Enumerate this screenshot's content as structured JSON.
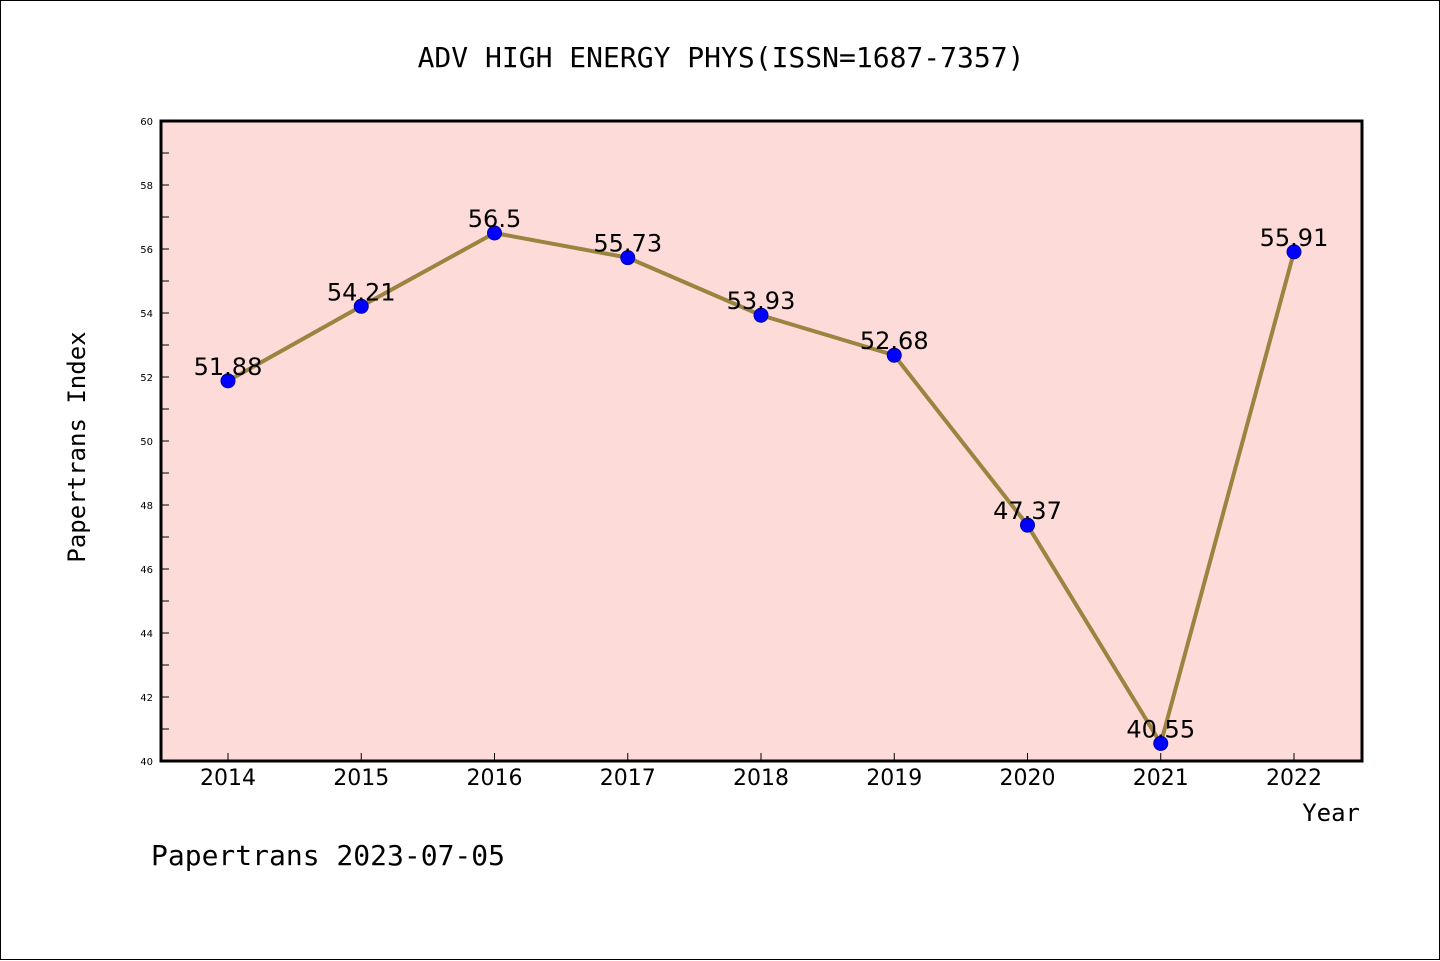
{
  "chart_data": {
    "type": "line",
    "title": "ADV HIGH ENERGY PHYS(ISSN=1687-7357)",
    "xlabel": "Year",
    "ylabel": "Papertrans Index",
    "categories": [
      "2014",
      "2015",
      "2016",
      "2017",
      "2018",
      "2019",
      "2020",
      "2021",
      "2022"
    ],
    "series": [
      {
        "values": [
          51.88,
          54.21,
          56.5,
          55.73,
          53.93,
          52.68,
          47.37,
          40.55,
          55.91
        ],
        "data_labels": [
          "51.88",
          "54.21",
          "56.5",
          "55.73",
          "53.93",
          "52.68",
          "47.37",
          "40.55",
          "55.91"
        ]
      }
    ],
    "ylim": [
      40,
      60
    ],
    "y_ticks": [
      40,
      42,
      44,
      46,
      48,
      50,
      52,
      54,
      56,
      58,
      60
    ],
    "grid": false,
    "colors": {
      "plot_background": "#fddbd8",
      "line": "#9b8340",
      "marker": "#0000ff"
    }
  },
  "footer": "Papertrans 2023-07-05"
}
